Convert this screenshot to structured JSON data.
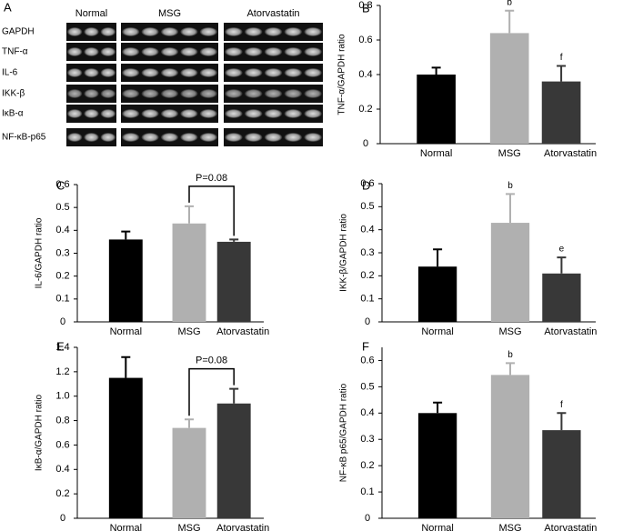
{
  "panel_a": {
    "label": "A",
    "groups": [
      "Normal",
      "MSG",
      "Atorvastatin"
    ],
    "rows": [
      "GAPDH",
      "TNF-α",
      "IL-6",
      "IKK-β",
      "IκB-α",
      "NF-κB-p65"
    ]
  },
  "chart_data": [
    {
      "type": "bar",
      "panel": "B",
      "ylabel": "TNF-α/GAPDH ratio",
      "categories": [
        "Normal",
        "MSG",
        "Atorvastatin"
      ],
      "values": [
        0.4,
        0.64,
        0.36
      ],
      "errors": [
        0.04,
        0.13,
        0.09
      ],
      "colors": [
        "#000000",
        "#b0b0b0",
        "#383838"
      ],
      "ylim": [
        0,
        0.8
      ],
      "yticks": [
        0,
        0.2,
        0.4,
        0.6,
        0.8
      ],
      "annotations": [
        {
          "text": "b",
          "x": "MSG"
        },
        {
          "text": "f",
          "x": "Atorvastatin"
        }
      ]
    },
    {
      "type": "bar",
      "panel": "C",
      "ylabel": "IL-6/GAPDH ratio",
      "categories": [
        "Normal",
        "MSG",
        "Atorvastatin"
      ],
      "values": [
        0.36,
        0.43,
        0.35
      ],
      "errors": [
        0.035,
        0.075,
        0.01
      ],
      "colors": [
        "#000000",
        "#b0b0b0",
        "#383838"
      ],
      "ylim": [
        0,
        0.6
      ],
      "yticks": [
        0,
        0.1,
        0.2,
        0.3,
        0.4,
        0.5,
        0.6
      ],
      "comparison": {
        "label": "P=0.08",
        "between": [
          "MSG",
          "Atorvastatin"
        ]
      }
    },
    {
      "type": "bar",
      "panel": "D",
      "ylabel": "IKK-β/GAPDH ratio",
      "categories": [
        "Normal",
        "MSG",
        "Atorvastatin"
      ],
      "values": [
        0.24,
        0.43,
        0.21
      ],
      "errors": [
        0.075,
        0.125,
        0.07
      ],
      "colors": [
        "#000000",
        "#b0b0b0",
        "#383838"
      ],
      "ylim": [
        0,
        0.6
      ],
      "yticks": [
        0,
        0.1,
        0.2,
        0.3,
        0.4,
        0.5,
        0.6
      ],
      "annotations": [
        {
          "text": "b",
          "x": "MSG"
        },
        {
          "text": "e",
          "x": "Atorvastatin"
        }
      ]
    },
    {
      "type": "bar",
      "panel": "E",
      "ylabel": "IκB-α/GAPDH ratio",
      "categories": [
        "Normal",
        "MSG",
        "Atorvastatin"
      ],
      "values": [
        1.15,
        0.74,
        0.94
      ],
      "errors": [
        0.17,
        0.07,
        0.12
      ],
      "colors": [
        "#000000",
        "#b0b0b0",
        "#383838"
      ],
      "ylim": [
        0,
        1.4
      ],
      "yticks": [
        0,
        0.2,
        0.4,
        0.6,
        0.8,
        {
          "value": 1,
          "label": "1.0"
        },
        1.2,
        1.4
      ],
      "comparison": {
        "label": "P=0.08",
        "between": [
          "MSG",
          "Atorvastatin"
        ]
      }
    },
    {
      "type": "bar",
      "panel": "F",
      "ylabel": "NF-κB p65/GAPDH ratio",
      "categories": [
        "Normal",
        "MSG",
        "Atorvastatin"
      ],
      "values": [
        0.4,
        0.545,
        0.335
      ],
      "errors": [
        0.04,
        0.045,
        0.065
      ],
      "colors": [
        "#000000",
        "#b0b0b0",
        "#383838"
      ],
      "ylim": [
        0,
        0.65
      ],
      "yticks": [
        0,
        0.1,
        0.2,
        0.3,
        0.4,
        0.5,
        0.6
      ],
      "annotations": [
        {
          "text": "b",
          "x": "MSG"
        },
        {
          "text": "f",
          "x": "Atorvastatin"
        }
      ]
    }
  ]
}
